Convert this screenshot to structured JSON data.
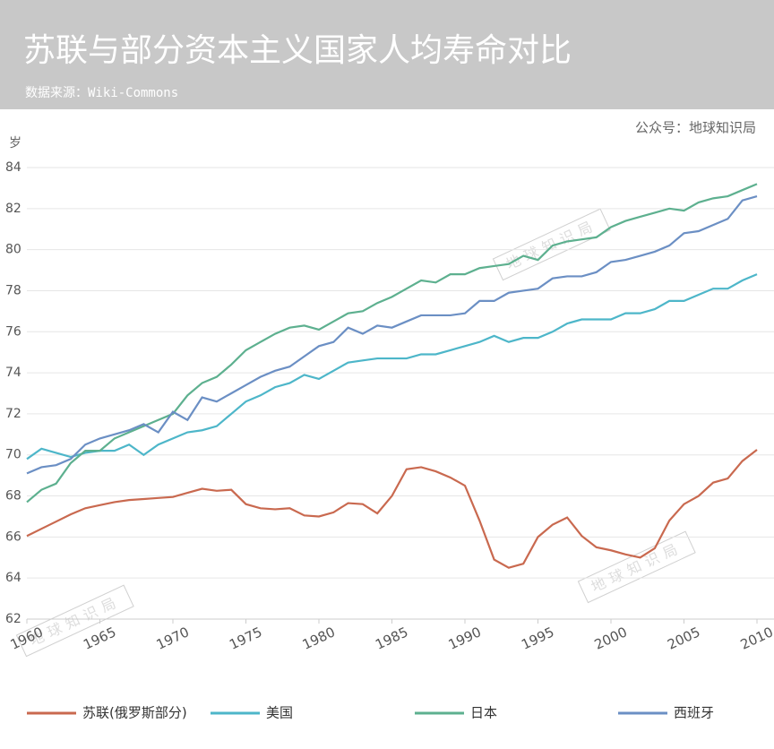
{
  "chart_data": {
    "type": "line",
    "title": "苏联与部分资本主义国家人均寿命对比",
    "subtitle": "数据来源：Wiki-Commons",
    "source_note": "公众号：地球知识局",
    "watermark": "地球知识局",
    "y_label": "岁",
    "x": [
      1960,
      1961,
      1962,
      1963,
      1964,
      1965,
      1966,
      1967,
      1968,
      1969,
      1970,
      1971,
      1972,
      1973,
      1974,
      1975,
      1976,
      1977,
      1978,
      1979,
      1980,
      1981,
      1982,
      1983,
      1984,
      1985,
      1986,
      1987,
      1988,
      1989,
      1990,
      1991,
      1992,
      1993,
      1994,
      1995,
      1996,
      1997,
      1998,
      1999,
      2000,
      2001,
      2002,
      2003,
      2004,
      2005,
      2006,
      2007,
      2008,
      2009,
      2010
    ],
    "series": [
      {
        "name": "苏联(俄罗斯部分)",
        "color": "#c9694f",
        "values": [
          66.05,
          66.4,
          66.75,
          67.1,
          67.4,
          67.55,
          67.7,
          67.8,
          67.85,
          67.9,
          67.95,
          68.15,
          68.35,
          68.25,
          68.3,
          67.6,
          67.4,
          67.35,
          67.4,
          67.05,
          67.0,
          67.2,
          67.65,
          67.6,
          67.15,
          68.0,
          69.3,
          69.4,
          69.2,
          68.9,
          68.5,
          66.8,
          64.9,
          64.5,
          64.7,
          66.0,
          66.6,
          66.95,
          66.05,
          65.5,
          65.35,
          65.15,
          65.0,
          65.45,
          66.8,
          67.6,
          68.0,
          68.65,
          68.85,
          69.7,
          70.25
        ]
      },
      {
        "name": "美国",
        "color": "#4db6c9",
        "values": [
          69.8,
          70.3,
          70.1,
          69.9,
          70.1,
          70.2,
          70.2,
          70.5,
          70.0,
          70.5,
          70.8,
          71.1,
          71.2,
          71.4,
          72.0,
          72.6,
          72.9,
          73.3,
          73.5,
          73.9,
          73.7,
          74.1,
          74.5,
          74.6,
          74.7,
          74.7,
          74.7,
          74.9,
          74.9,
          75.1,
          75.3,
          75.5,
          75.8,
          75.5,
          75.7,
          75.7,
          76.0,
          76.4,
          76.6,
          76.6,
          76.6,
          76.9,
          76.9,
          77.1,
          77.5,
          77.5,
          77.8,
          78.1,
          78.1,
          78.5,
          78.8
        ]
      },
      {
        "name": "日本",
        "color": "#5db08f",
        "values": [
          67.7,
          68.3,
          68.6,
          69.6,
          70.2,
          70.2,
          70.8,
          71.1,
          71.4,
          71.7,
          72.0,
          72.9,
          73.5,
          73.8,
          74.4,
          75.1,
          75.5,
          75.9,
          76.2,
          76.3,
          76.1,
          76.5,
          76.9,
          77.0,
          77.4,
          77.7,
          78.1,
          78.5,
          78.4,
          78.8,
          78.8,
          79.1,
          79.2,
          79.3,
          79.7,
          79.5,
          80.2,
          80.4,
          80.5,
          80.6,
          81.1,
          81.4,
          81.6,
          81.8,
          82.0,
          81.9,
          82.3,
          82.5,
          82.6,
          82.9,
          83.2
        ]
      },
      {
        "name": "西班牙",
        "color": "#6b8fc4",
        "values": [
          69.1,
          69.4,
          69.5,
          69.8,
          70.5,
          70.8,
          71.0,
          71.2,
          71.5,
          71.1,
          72.1,
          71.7,
          72.8,
          72.6,
          73.0,
          73.4,
          73.8,
          74.1,
          74.3,
          74.8,
          75.3,
          75.5,
          76.2,
          75.9,
          76.3,
          76.2,
          76.5,
          76.8,
          76.8,
          76.8,
          76.9,
          77.5,
          77.5,
          77.9,
          78.0,
          78.1,
          78.6,
          78.7,
          78.7,
          78.9,
          79.4,
          79.5,
          79.7,
          79.9,
          80.2,
          80.8,
          80.9,
          81.2,
          81.5,
          82.4,
          82.6
        ]
      }
    ],
    "xlim": [
      1960,
      2010
    ],
    "xticks": [
      1960,
      1965,
      1970,
      1975,
      1980,
      1985,
      1990,
      1995,
      2000,
      2005,
      2010
    ],
    "ylim": [
      62,
      84
    ],
    "yticks": [
      62,
      64,
      66,
      68,
      70,
      72,
      74,
      76,
      78,
      80,
      82,
      84
    ],
    "grid": true,
    "legend": "bottom"
  }
}
